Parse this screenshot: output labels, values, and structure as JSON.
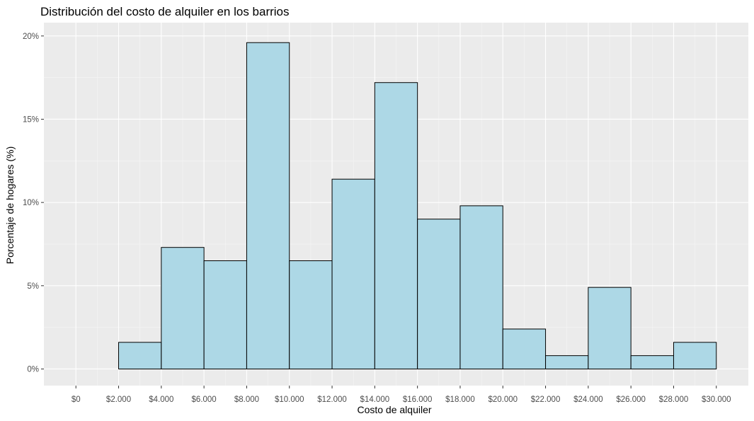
{
  "chart_data": {
    "type": "bar",
    "title": "Distribución del costo de alquiler en los barrios",
    "xlabel": "Costo de alquiler",
    "ylabel": "Porcentaje de hogares (%)",
    "bin_width": 2000,
    "bins": [
      {
        "start": 0,
        "end": 2000,
        "value": 0
      },
      {
        "start": 2000,
        "end": 4000,
        "value": 1.6
      },
      {
        "start": 4000,
        "end": 6000,
        "value": 7.3
      },
      {
        "start": 6000,
        "end": 8000,
        "value": 6.5
      },
      {
        "start": 8000,
        "end": 10000,
        "value": 19.6
      },
      {
        "start": 10000,
        "end": 12000,
        "value": 6.5
      },
      {
        "start": 12000,
        "end": 14000,
        "value": 11.4
      },
      {
        "start": 14000,
        "end": 16000,
        "value": 17.2
      },
      {
        "start": 16000,
        "end": 18000,
        "value": 9.0
      },
      {
        "start": 18000,
        "end": 20000,
        "value": 9.8
      },
      {
        "start": 20000,
        "end": 22000,
        "value": 2.4
      },
      {
        "start": 22000,
        "end": 24000,
        "value": 0.8
      },
      {
        "start": 24000,
        "end": 26000,
        "value": 4.9
      },
      {
        "start": 26000,
        "end": 28000,
        "value": 0.8
      },
      {
        "start": 28000,
        "end": 30000,
        "value": 1.6
      }
    ],
    "xlim": [
      -1500,
      31500
    ],
    "ylim": [
      -1.0,
      20.8
    ],
    "x_ticks": [
      0,
      2000,
      4000,
      6000,
      8000,
      10000,
      12000,
      14000,
      16000,
      18000,
      20000,
      22000,
      24000,
      26000,
      28000,
      30000
    ],
    "x_tick_labels": [
      "$0",
      "$2.000",
      "$4.000",
      "$6.000",
      "$8.000",
      "$10.000",
      "$12.000",
      "$14.000",
      "$16.000",
      "$18.000",
      "$20.000",
      "$22.000",
      "$24.000",
      "$26.000",
      "$28.000",
      "$30.000"
    ],
    "y_ticks": [
      0,
      5,
      10,
      15,
      20
    ],
    "y_tick_labels": [
      "0%",
      "5%",
      "10%",
      "15%",
      "20%"
    ],
    "grid": true,
    "colors": {
      "bar_fill": "#add8e6",
      "bar_stroke": "#000000",
      "panel_background": "#ebebeb",
      "grid_major": "#ffffff",
      "grid_minor": "#f5f5f5"
    }
  }
}
